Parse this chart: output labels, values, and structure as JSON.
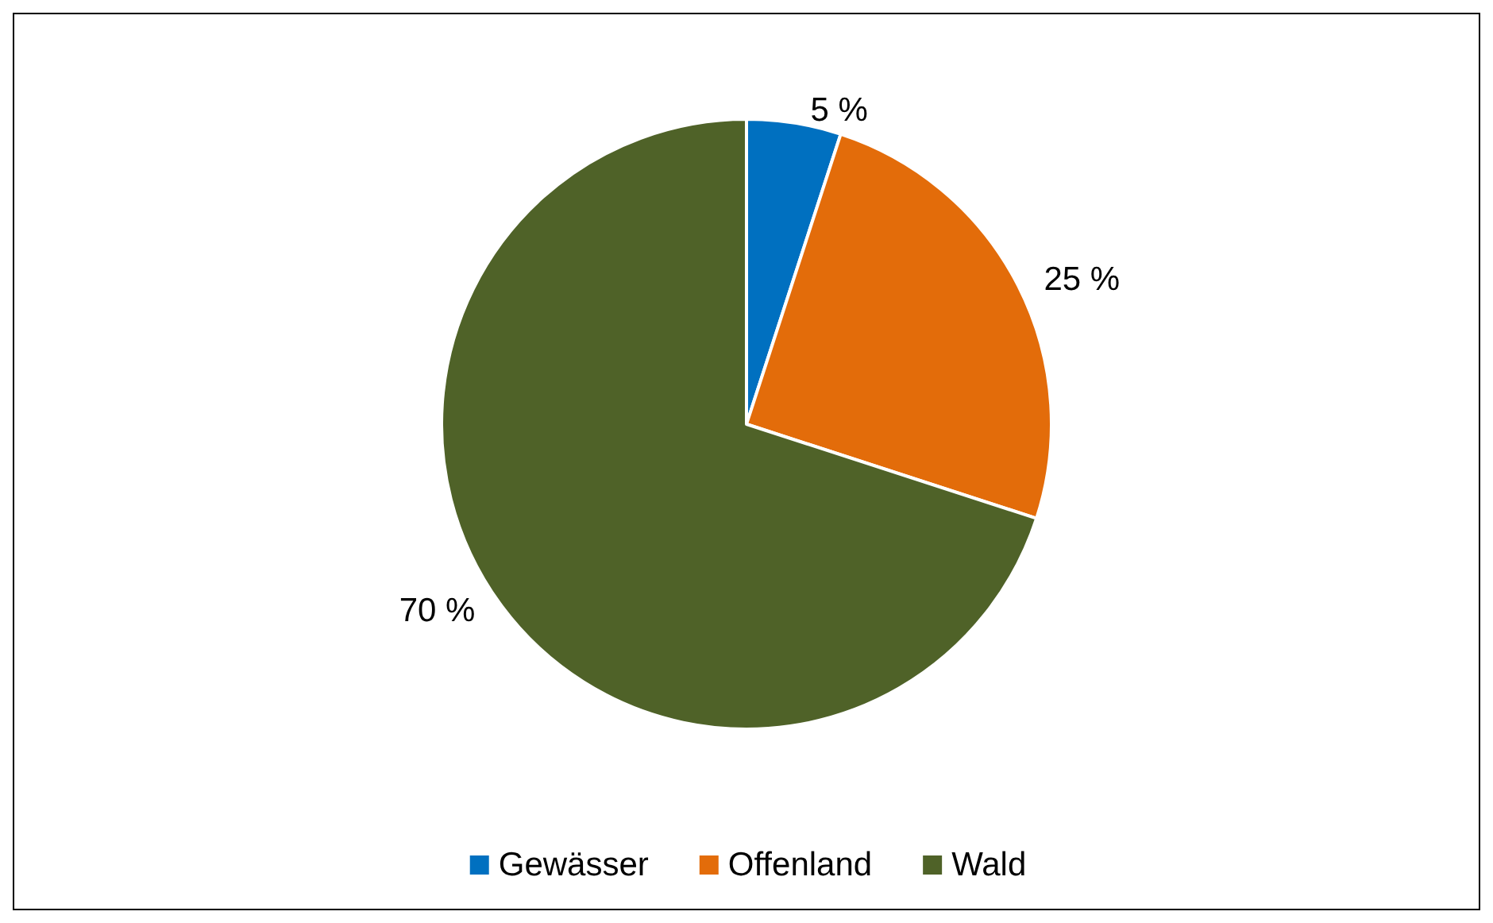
{
  "chart_data": {
    "type": "pie",
    "categories": [
      "Gewässer",
      "Offenland",
      "Wald"
    ],
    "values": [
      5,
      25,
      70
    ],
    "colors": [
      "#0070c0",
      "#e36c0a",
      "#4f6228"
    ],
    "value_labels": [
      "5 %",
      "25 %",
      "70 %"
    ],
    "legend": "bottom"
  }
}
